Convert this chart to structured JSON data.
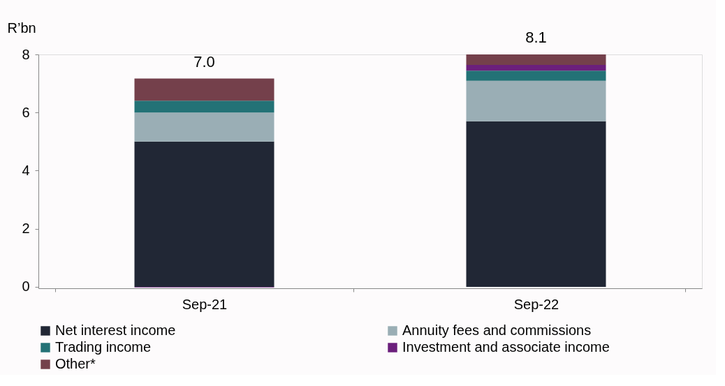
{
  "chart_data": {
    "type": "bar",
    "stacked": true,
    "ylabel": "R’bn",
    "categories": [
      "Sep-21",
      "Sep-22"
    ],
    "series": [
      {
        "name": "Net interest income",
        "color": "#212735",
        "values": [
          5.0,
          5.7
        ]
      },
      {
        "name": "Annuity fees and commissions",
        "color": "#9aaeb5",
        "values": [
          1.0,
          1.39
        ]
      },
      {
        "name": "Trading income",
        "color": "#237276",
        "values": [
          0.41,
          0.35
        ]
      },
      {
        "name": "Investment and associate income",
        "color": "#6b1f7c",
        "values": [
          -0.02,
          0.2
        ]
      },
      {
        "name": "Other*",
        "color": "#74404b",
        "values": [
          0.76,
          0.36
        ]
      }
    ],
    "totals": [
      "7.0",
      "8.1"
    ],
    "ylim": [
      -0.05,
      8
    ],
    "yticks": [
      0,
      2,
      4,
      6,
      8
    ],
    "grid": false,
    "legend": "bottom"
  }
}
